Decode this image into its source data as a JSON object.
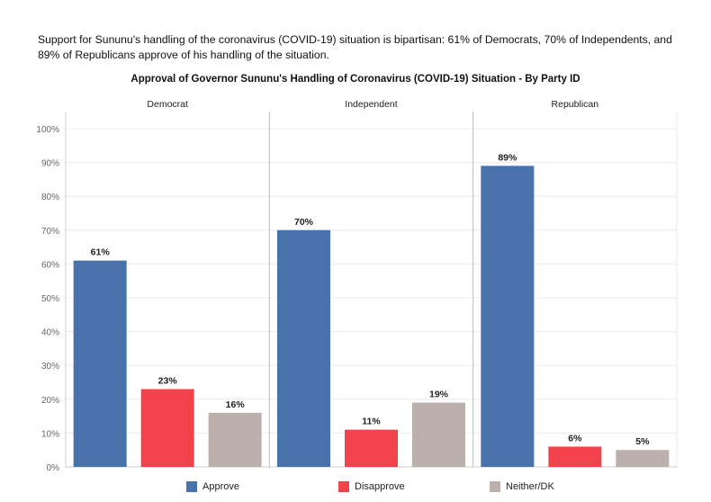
{
  "intro_text": "Support for Sununu's handling of the coronavirus (COVID-19) situation is bipartisan: 61% of Democrats, 70% of Independents, and 89% of Republicans approve of his handling of the situation.",
  "chart_data": {
    "type": "bar",
    "title": "Approval of Governor Sununu's Handling of Coronavirus (COVID-19) Situation - By Party ID",
    "panels": [
      "Democrat",
      "Independent",
      "Republican"
    ],
    "categories": [
      "Approve",
      "Disapprove",
      "Neither/DK"
    ],
    "series": [
      {
        "name": "Democrat",
        "values": [
          61,
          23,
          16
        ],
        "labels": [
          "61%",
          "23%",
          "16%"
        ]
      },
      {
        "name": "Independent",
        "values": [
          70,
          11,
          19
        ],
        "labels": [
          "70%",
          "11%",
          "19%"
        ]
      },
      {
        "name": "Republican",
        "values": [
          89,
          6,
          5
        ],
        "labels": [
          "89%",
          "6%",
          "5%"
        ]
      }
    ],
    "ylim": [
      0,
      100
    ],
    "yticks": [
      "0%",
      "10%",
      "20%",
      "30%",
      "40%",
      "50%",
      "60%",
      "70%",
      "80%",
      "90%",
      "100%"
    ],
    "grid": true,
    "legend": [
      {
        "label": "Approve",
        "color": "#4a72aa"
      },
      {
        "label": "Disapprove",
        "color": "#f2434d"
      },
      {
        "label": "Neither/DK",
        "color": "#bbb0ac"
      }
    ],
    "legend_position": "bottom"
  }
}
